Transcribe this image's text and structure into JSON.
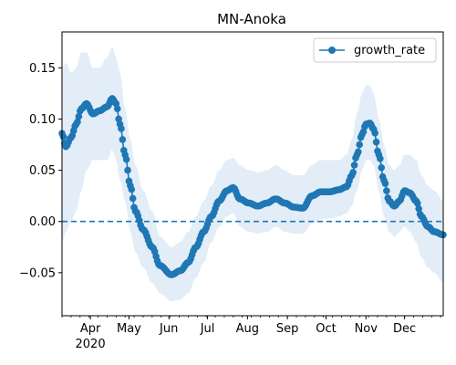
{
  "chart_data": {
    "type": "line",
    "title": "MN-Anoka",
    "xlabel": "",
    "ylabel": "",
    "x_range": [
      "2020-03-10",
      "2020-12-31"
    ],
    "ylim": [
      -0.092,
      0.185
    ],
    "month_ticks": [
      {
        "date": "2020-04-01",
        "label": "Apr",
        "sublabel": "2020"
      },
      {
        "date": "2020-05-01",
        "label": "May",
        "sublabel": ""
      },
      {
        "date": "2020-06-01",
        "label": "Jun",
        "sublabel": ""
      },
      {
        "date": "2020-07-01",
        "label": "Jul",
        "sublabel": ""
      },
      {
        "date": "2020-08-01",
        "label": "Aug",
        "sublabel": ""
      },
      {
        "date": "2020-09-01",
        "label": "Sep",
        "sublabel": ""
      },
      {
        "date": "2020-10-01",
        "label": "Oct",
        "sublabel": ""
      },
      {
        "date": "2020-11-01",
        "label": "Nov",
        "sublabel": ""
      },
      {
        "date": "2020-12-01",
        "label": "Dec",
        "sublabel": ""
      }
    ],
    "y_ticks": [
      {
        "value": -0.05,
        "label": "−0.05"
      },
      {
        "value": 0.0,
        "label": "0.00"
      },
      {
        "value": 0.05,
        "label": "0.05"
      },
      {
        "value": 0.1,
        "label": "0.10"
      },
      {
        "value": 0.15,
        "label": "0.15"
      }
    ],
    "grid": false,
    "legend_position": "top-right",
    "reference_line": {
      "y": 0.0,
      "style": "dashed"
    },
    "colors": {
      "line": "#1f77b4",
      "band": "#c6dbef",
      "refline": "#1f77b4"
    },
    "series": [
      {
        "name": "growth_rate",
        "anchors": [
          {
            "date": "2020-03-10",
            "value": 0.086,
            "low": -0.02,
            "high": 0.15
          },
          {
            "date": "2020-03-13",
            "value": 0.073,
            "low": -0.01,
            "high": 0.155
          },
          {
            "date": "2020-03-17",
            "value": 0.082,
            "low": 0.0,
            "high": 0.145
          },
          {
            "date": "2020-03-21",
            "value": 0.095,
            "low": 0.01,
            "high": 0.15
          },
          {
            "date": "2020-03-25",
            "value": 0.11,
            "low": 0.03,
            "high": 0.165
          },
          {
            "date": "2020-03-29",
            "value": 0.115,
            "low": 0.05,
            "high": 0.165
          },
          {
            "date": "2020-04-03",
            "value": 0.105,
            "low": 0.06,
            "high": 0.15
          },
          {
            "date": "2020-04-08",
            "value": 0.108,
            "low": 0.06,
            "high": 0.15
          },
          {
            "date": "2020-04-14",
            "value": 0.112,
            "low": 0.06,
            "high": 0.16
          },
          {
            "date": "2020-04-18",
            "value": 0.12,
            "low": 0.07,
            "high": 0.17
          },
          {
            "date": "2020-04-21",
            "value": 0.115,
            "low": 0.06,
            "high": 0.16
          },
          {
            "date": "2020-04-24",
            "value": 0.095,
            "low": 0.04,
            "high": 0.145
          },
          {
            "date": "2020-04-28",
            "value": 0.065,
            "low": 0.02,
            "high": 0.11
          },
          {
            "date": "2020-05-02",
            "value": 0.035,
            "low": -0.01,
            "high": 0.08
          },
          {
            "date": "2020-05-06",
            "value": 0.01,
            "low": -0.03,
            "high": 0.055
          },
          {
            "date": "2020-05-12",
            "value": -0.008,
            "low": -0.045,
            "high": 0.03
          },
          {
            "date": "2020-05-19",
            "value": -0.025,
            "low": -0.06,
            "high": 0.01
          },
          {
            "date": "2020-05-25",
            "value": -0.043,
            "low": -0.07,
            "high": -0.015
          },
          {
            "date": "2020-06-03",
            "value": -0.052,
            "low": -0.078,
            "high": -0.025
          },
          {
            "date": "2020-06-10",
            "value": -0.048,
            "low": -0.076,
            "high": -0.02
          },
          {
            "date": "2020-06-16",
            "value": -0.04,
            "low": -0.07,
            "high": -0.01
          },
          {
            "date": "2020-06-22",
            "value": -0.025,
            "low": -0.055,
            "high": 0.005
          },
          {
            "date": "2020-06-28",
            "value": -0.01,
            "low": -0.04,
            "high": 0.02
          },
          {
            "date": "2020-07-04",
            "value": 0.005,
            "low": -0.02,
            "high": 0.035
          },
          {
            "date": "2020-07-10",
            "value": 0.02,
            "low": -0.005,
            "high": 0.05
          },
          {
            "date": "2020-07-16",
            "value": 0.03,
            "low": 0.005,
            "high": 0.06
          },
          {
            "date": "2020-07-21",
            "value": 0.033,
            "low": 0.008,
            "high": 0.062
          },
          {
            "date": "2020-07-26",
            "value": 0.022,
            "low": -0.005,
            "high": 0.055
          },
          {
            "date": "2020-08-02",
            "value": 0.018,
            "low": -0.01,
            "high": 0.05
          },
          {
            "date": "2020-08-09",
            "value": 0.015,
            "low": -0.012,
            "high": 0.048
          },
          {
            "date": "2020-08-16",
            "value": 0.018,
            "low": -0.01,
            "high": 0.05
          },
          {
            "date": "2020-08-23",
            "value": 0.022,
            "low": -0.005,
            "high": 0.055
          },
          {
            "date": "2020-08-30",
            "value": 0.018,
            "low": -0.01,
            "high": 0.05
          },
          {
            "date": "2020-09-06",
            "value": 0.014,
            "low": -0.012,
            "high": 0.045
          },
          {
            "date": "2020-09-13",
            "value": 0.013,
            "low": -0.012,
            "high": 0.045
          },
          {
            "date": "2020-09-20",
            "value": 0.025,
            "low": -0.002,
            "high": 0.055
          },
          {
            "date": "2020-09-27",
            "value": 0.029,
            "low": 0.002,
            "high": 0.06
          },
          {
            "date": "2020-10-04",
            "value": 0.029,
            "low": 0.003,
            "high": 0.06
          },
          {
            "date": "2020-10-11",
            "value": 0.031,
            "low": 0.005,
            "high": 0.06
          },
          {
            "date": "2020-10-17",
            "value": 0.034,
            "low": 0.008,
            "high": 0.065
          },
          {
            "date": "2020-10-21",
            "value": 0.045,
            "low": 0.015,
            "high": 0.08
          },
          {
            "date": "2020-10-25",
            "value": 0.065,
            "low": 0.03,
            "high": 0.105
          },
          {
            "date": "2020-10-29",
            "value": 0.085,
            "low": 0.05,
            "high": 0.125
          },
          {
            "date": "2020-11-01",
            "value": 0.095,
            "low": 0.06,
            "high": 0.133
          },
          {
            "date": "2020-11-04",
            "value": 0.096,
            "low": 0.06,
            "high": 0.133
          },
          {
            "date": "2020-11-07",
            "value": 0.09,
            "low": 0.055,
            "high": 0.125
          },
          {
            "date": "2020-11-11",
            "value": 0.065,
            "low": 0.03,
            "high": 0.1
          },
          {
            "date": "2020-11-15",
            "value": 0.04,
            "low": 0.005,
            "high": 0.075
          },
          {
            "date": "2020-11-19",
            "value": 0.02,
            "low": -0.01,
            "high": 0.055
          },
          {
            "date": "2020-11-23",
            "value": 0.015,
            "low": -0.015,
            "high": 0.05
          },
          {
            "date": "2020-11-27",
            "value": 0.02,
            "low": -0.01,
            "high": 0.055
          },
          {
            "date": "2020-12-01",
            "value": 0.03,
            "low": -0.005,
            "high": 0.065
          },
          {
            "date": "2020-12-05",
            "value": 0.028,
            "low": -0.01,
            "high": 0.065
          },
          {
            "date": "2020-12-10",
            "value": 0.02,
            "low": -0.02,
            "high": 0.06
          },
          {
            "date": "2020-12-14",
            "value": 0.005,
            "low": -0.035,
            "high": 0.045
          },
          {
            "date": "2020-12-19",
            "value": -0.005,
            "low": -0.045,
            "high": 0.035
          },
          {
            "date": "2020-12-24",
            "value": -0.01,
            "low": -0.05,
            "high": 0.03
          },
          {
            "date": "2020-12-31",
            "value": -0.013,
            "low": -0.06,
            "high": 0.02
          }
        ]
      }
    ]
  }
}
